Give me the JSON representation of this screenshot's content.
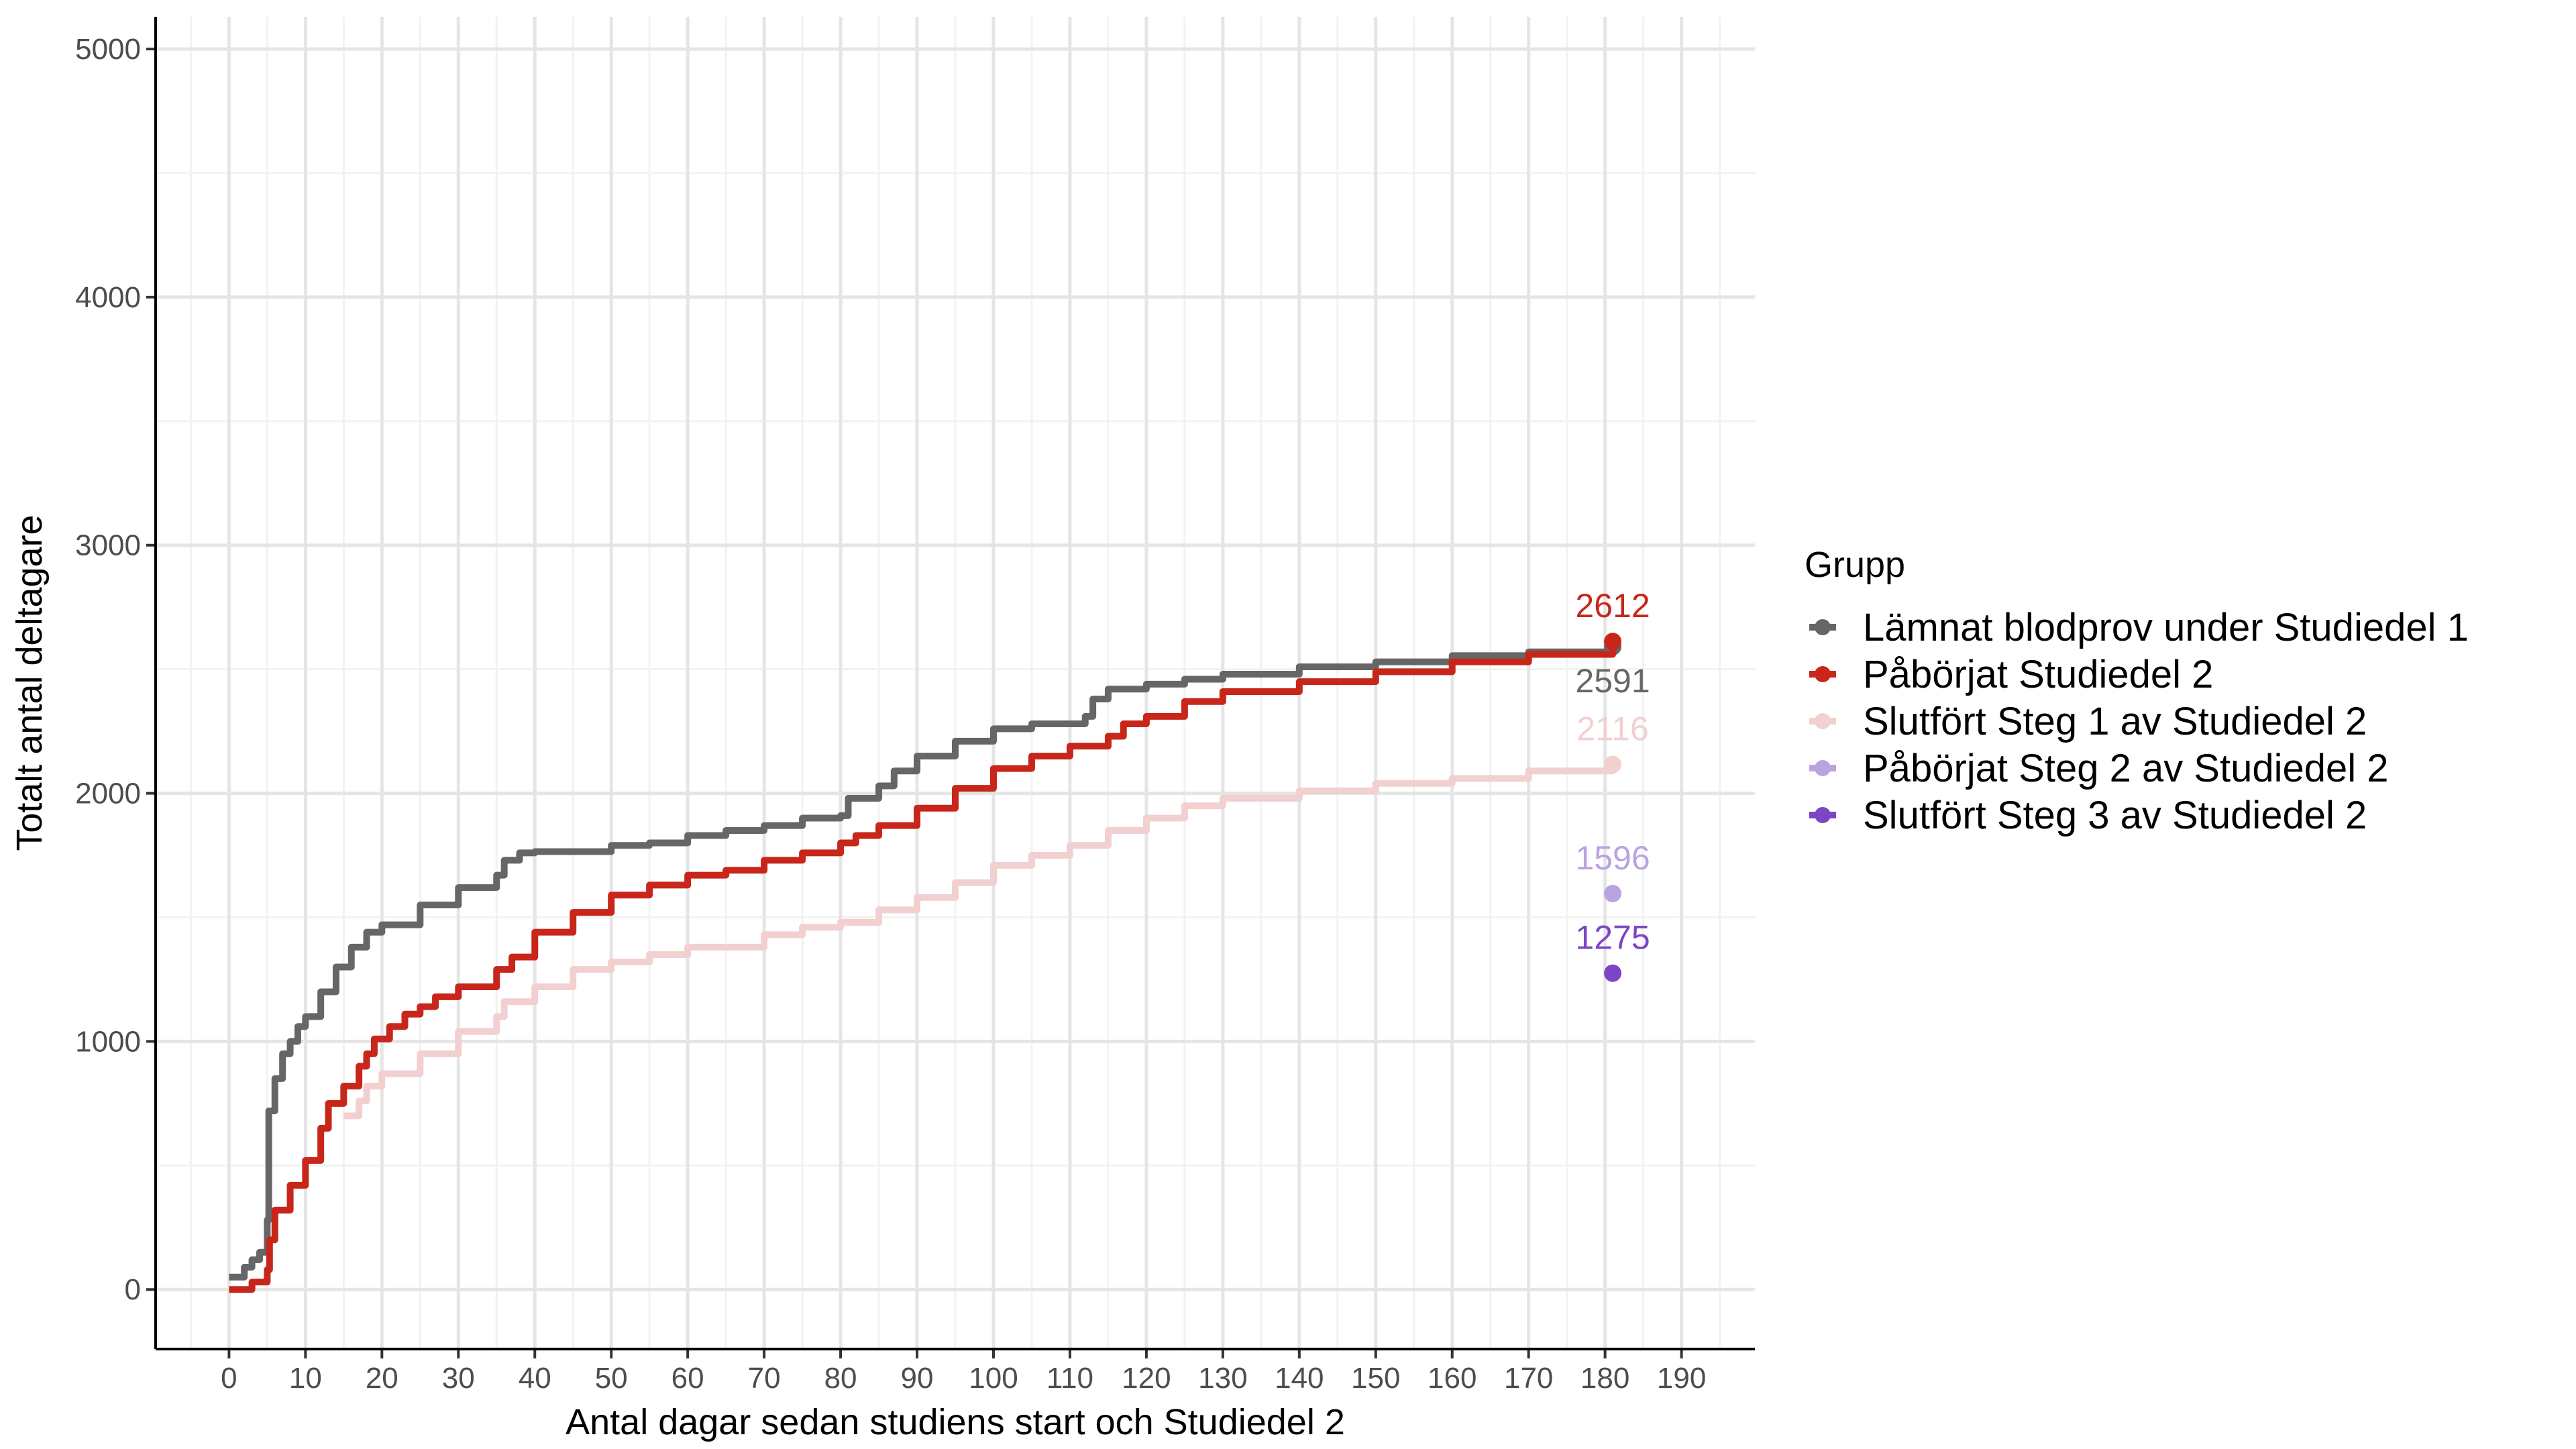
{
  "chart_data": {
    "type": "line",
    "xlabel": "Antal dagar sedan studiens start och Studiedel 2",
    "ylabel": "Totalt antal deltagare",
    "xlim": [
      -9.6,
      199.6
    ],
    "ylim": [
      -240,
      5130
    ],
    "x_ticks": [
      0,
      10,
      20,
      30,
      40,
      50,
      60,
      70,
      80,
      90,
      100,
      110,
      120,
      130,
      140,
      150,
      160,
      170,
      180,
      190
    ],
    "y_ticks": [
      0,
      1000,
      2000,
      3000,
      4000,
      5000
    ],
    "grid": true,
    "legend": {
      "title": "Grupp",
      "placement": "right"
    },
    "series": [
      {
        "name": "Lämnat blodprov under Studiedel 1",
        "color": "#666666",
        "end_label": "2591",
        "x": [
          0,
          2,
          3,
          4,
          5,
          5.2,
          6,
          7,
          8,
          9,
          10,
          12,
          14,
          16,
          18,
          20,
          25,
          30,
          35,
          36,
          38,
          40,
          50,
          55,
          60,
          65,
          70,
          75,
          80,
          81,
          85,
          87,
          90,
          95,
          100,
          105,
          112,
          113,
          115,
          120,
          125,
          130,
          140,
          150,
          160,
          170,
          181
        ],
        "y": [
          50,
          90,
          120,
          150,
          280,
          720,
          850,
          950,
          1000,
          1060,
          1100,
          1200,
          1300,
          1380,
          1440,
          1470,
          1550,
          1620,
          1670,
          1730,
          1760,
          1765,
          1790,
          1800,
          1830,
          1850,
          1870,
          1900,
          1910,
          1980,
          2030,
          2090,
          2150,
          2210,
          2260,
          2280,
          2310,
          2380,
          2420,
          2440,
          2460,
          2480,
          2510,
          2530,
          2555,
          2570,
          2591
        ]
      },
      {
        "name": "Påbörjat Studiedel 2",
        "color": "#C8261A",
        "end_label": "2612",
        "x": [
          0,
          3,
          5,
          5.3,
          6,
          8,
          10,
          12,
          13,
          15,
          17,
          18,
          19,
          21,
          23,
          25,
          27,
          30,
          35,
          37,
          40,
          45,
          50,
          55,
          60,
          65,
          70,
          75,
          80,
          82,
          85,
          90,
          95,
          100,
          105,
          110,
          115,
          117,
          120,
          125,
          130,
          140,
          150,
          160,
          170,
          181
        ],
        "y": [
          0,
          30,
          80,
          200,
          320,
          420,
          520,
          650,
          750,
          820,
          900,
          950,
          1010,
          1060,
          1110,
          1140,
          1180,
          1220,
          1290,
          1340,
          1440,
          1520,
          1590,
          1630,
          1670,
          1690,
          1730,
          1760,
          1800,
          1830,
          1870,
          1940,
          2020,
          2100,
          2150,
          2190,
          2230,
          2280,
          2310,
          2370,
          2410,
          2450,
          2490,
          2530,
          2560,
          2612
        ]
      },
      {
        "name": "Slutfört Steg 1 av Studiedel 2",
        "color": "#F2D0D0",
        "end_label": "2116",
        "x": [
          15,
          17,
          18,
          20,
          25,
          30,
          35,
          36,
          40,
          45,
          50,
          55,
          60,
          70,
          75,
          80,
          85,
          90,
          95,
          100,
          105,
          110,
          115,
          120,
          125,
          130,
          140,
          150,
          160,
          170,
          181
        ],
        "y": [
          700,
          760,
          820,
          870,
          950,
          1040,
          1100,
          1160,
          1220,
          1290,
          1320,
          1350,
          1380,
          1430,
          1460,
          1480,
          1530,
          1580,
          1640,
          1710,
          1750,
          1790,
          1850,
          1900,
          1950,
          1980,
          2010,
          2040,
          2060,
          2090,
          2116
        ]
      },
      {
        "name": "Påbörjat Steg 2 av Studiedel 2",
        "color": "#B9A3E3",
        "end_label": "1596",
        "x": [
          181
        ],
        "y": [
          1596
        ]
      },
      {
        "name": "Slutfört Steg 3 av Studiedel 2",
        "color": "#7B45C6",
        "end_label": "1275",
        "x": [
          181
        ],
        "y": [
          1275
        ]
      }
    ]
  }
}
